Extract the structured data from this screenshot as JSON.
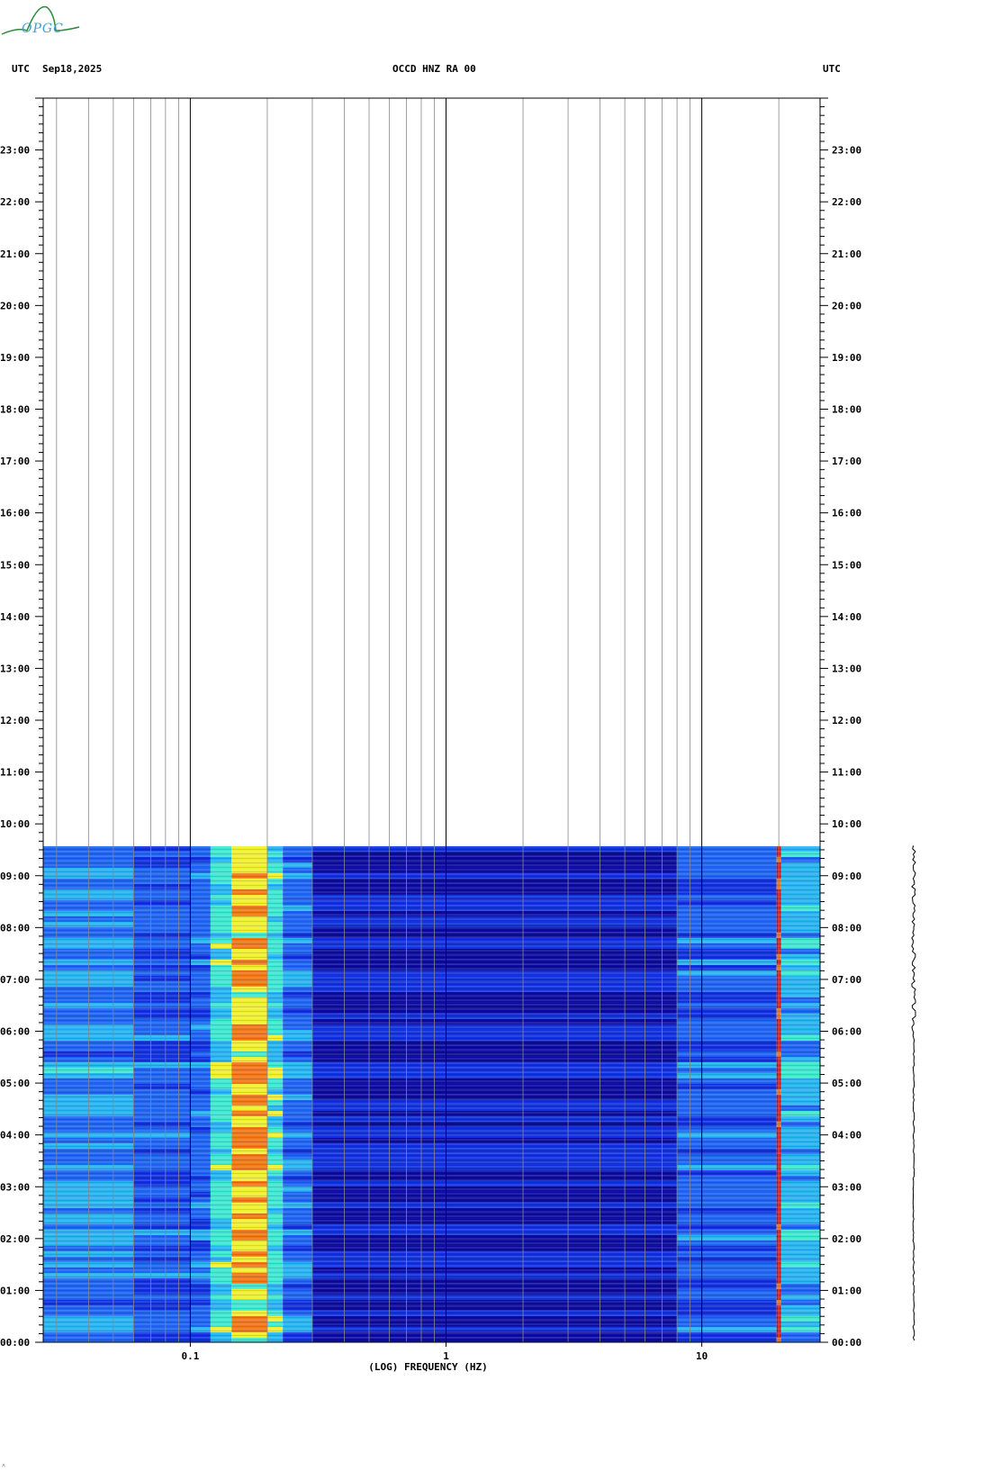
{
  "header": {
    "left_tz": "UTC",
    "date": "Sep18,2025",
    "station": "OCCD HNZ RA 00",
    "right_tz": "UTC"
  },
  "logo": {
    "text": "OPGC"
  },
  "chart_data": {
    "type": "heatmap",
    "title": "OCCD HNZ RA 00",
    "xlabel": "(LOG) FREQUENCY (HZ)",
    "x_scale": "log",
    "xlim": [
      0.0266,
      29
    ],
    "x_ticks": [
      {
        "value": 0.1,
        "label": "0.1"
      },
      {
        "value": 1,
        "label": "1"
      },
      {
        "value": 10,
        "label": "10"
      }
    ],
    "y_unit": "UTC hour",
    "ylim": [
      0,
      24
    ],
    "y_tick_labels": [
      "00:00",
      "01:00",
      "02:00",
      "03:00",
      "04:00",
      "05:00",
      "06:00",
      "07:00",
      "08:00",
      "09:00",
      "10:00",
      "11:00",
      "12:00",
      "13:00",
      "14:00",
      "15:00",
      "16:00",
      "17:00",
      "18:00",
      "19:00",
      "20:00",
      "21:00",
      "22:00",
      "23:00"
    ],
    "data_end_hour": 9.57,
    "colormap": [
      "#0a0a9c",
      "#1030dc",
      "#1e64f0",
      "#28b4f0",
      "#40e8d0",
      "#f0f030",
      "#f07818",
      "#d01010"
    ],
    "frequency_bands": [
      {
        "f_min": 0.0266,
        "f_max": 0.06,
        "level": 0.3
      },
      {
        "f_min": 0.06,
        "f_max": 0.1,
        "level": 0.18
      },
      {
        "f_min": 0.1,
        "f_max": 0.12,
        "level": 0.22
      },
      {
        "f_min": 0.12,
        "f_max": 0.145,
        "level": 0.48
      },
      {
        "f_min": 0.145,
        "f_max": 0.2,
        "level": 0.72
      },
      {
        "f_min": 0.2,
        "f_max": 0.23,
        "level": 0.5
      },
      {
        "f_min": 0.23,
        "f_max": 0.3,
        "level": 0.25
      },
      {
        "f_min": 0.3,
        "f_max": 8,
        "level": 0.05
      },
      {
        "f_min": 8,
        "f_max": 19.6,
        "level": 0.2
      },
      {
        "f_min": 19.6,
        "f_max": 20.4,
        "level": 0.95
      },
      {
        "f_min": 20.4,
        "f_max": 29,
        "level": 0.38
      }
    ],
    "grid": true
  }
}
